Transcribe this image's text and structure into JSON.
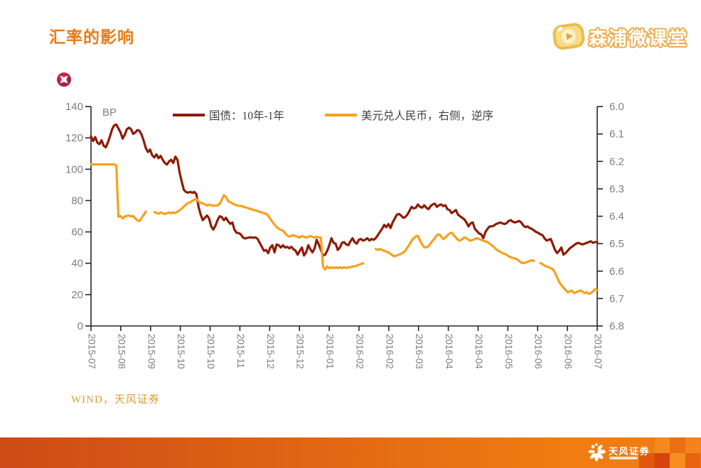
{
  "slide": {
    "background": "#FFFFFF"
  },
  "header": {
    "title": "汇率的影响",
    "title_color": "#E97B17",
    "brand": "森浦微课堂",
    "brand_text_color": "#FFFFFF",
    "brand_outline_color": "#EBAC4E"
  },
  "footer": {
    "source": "WIND，天风证券",
    "source_color": "#DA9C36"
  },
  "bottom_bar": {
    "brand_name": "天风证券",
    "gradient_left": "#CE4A16",
    "gradient_right": "#F07C12",
    "mosaic": [
      {
        "row": 0,
        "col": 1,
        "color": "#F5891D"
      },
      {
        "row": 0,
        "col": 2,
        "color": "#EC6E12"
      },
      {
        "row": 0,
        "col": 3,
        "color": "#F3831C"
      },
      {
        "row": 1,
        "col": 0,
        "color": "#E05710"
      },
      {
        "row": 1,
        "col": 1,
        "color": "#D8430E"
      },
      {
        "row": 1,
        "col": 2,
        "color": "#F68E1E"
      },
      {
        "row": 1,
        "col": 3,
        "color": "#E96410"
      }
    ]
  },
  "chart_data": {
    "type": "line",
    "title": "",
    "legend_position": "top",
    "grid": false,
    "x_axis": {
      "start_month": "2015-07",
      "end_month": "2016-07",
      "tick_labels": [
        "2015-07",
        "2015-08",
        "2015-09",
        "2015-10",
        "2015-10",
        "2015-11",
        "2015-12",
        "2015-12",
        "2016-01",
        "2016-02",
        "2016-02",
        "2016-03",
        "2016-04",
        "2016-04",
        "2016-05",
        "2016-06",
        "2016-06",
        "2016-07"
      ]
    },
    "left_axis": {
      "label": "BP",
      "min": 0,
      "max": 140,
      "ticks": [
        0,
        20,
        40,
        60,
        80,
        100,
        120,
        140
      ]
    },
    "right_axis": {
      "min": 6.0,
      "max": 6.8,
      "ticks": [
        6.0,
        6.1,
        6.2,
        6.3,
        6.4,
        6.5,
        6.6,
        6.7,
        6.8
      ],
      "inverted": true
    },
    "series": [
      {
        "name": "国债：10年-1年",
        "axis": "left",
        "unit": "BP",
        "color": "#8E1B04",
        "x_start_months": 0,
        "x_step_months": 0.05,
        "values": [
          121,
          118,
          120.5,
          117,
          116,
          118.5,
          115,
          114,
          117,
          121,
          125.5,
          128,
          128.5,
          126,
          123.5,
          119.5,
          122,
          125.5,
          126.5,
          125.5,
          122.5,
          123.5,
          125,
          124.5,
          122,
          118,
          113.5,
          111,
          112.5,
          109,
          107.5,
          109.5,
          107,
          108.5,
          106,
          104,
          103,
          105,
          106,
          104,
          108,
          106,
          98,
          92,
          87,
          85.5,
          85,
          85.5,
          85,
          85.5,
          84,
          76,
          71,
          67.5,
          69,
          70.5,
          68.5,
          63.5,
          61.5,
          64,
          67.5,
          70,
          69.5,
          67.5,
          69,
          66.8,
          65.2,
          66,
          61.5,
          59.5,
          59.2,
          58.5,
          56.5,
          55.8,
          56.2,
          56.5,
          56.5,
          56.3,
          56.5,
          55.5,
          53,
          50.5,
          48,
          48.5,
          46.5,
          50,
          51.5,
          47,
          52,
          51.5,
          50,
          51.5,
          50,
          50.5,
          49.5,
          50.5,
          49,
          48,
          45.5,
          48,
          50,
          45,
          47,
          51.5,
          49,
          47,
          49.5,
          55,
          52,
          48.5,
          45,
          45.5,
          48,
          51.5,
          56,
          53,
          52.5,
          48.5,
          50,
          53,
          53.5,
          52,
          51.5,
          54,
          56,
          53.5,
          52.5,
          55,
          55.5,
          54.5,
          55,
          56,
          54.5,
          55.5,
          55,
          56,
          58,
          60,
          62,
          64.5,
          63,
          65,
          62.5,
          66,
          68.5,
          71,
          71.5,
          70.5,
          69,
          69.5,
          71,
          73.5,
          76,
          75,
          75.5,
          77.5,
          76,
          75.5,
          77,
          75.5,
          74.5,
          76.5,
          77.5,
          78,
          76,
          77,
          77.5,
          76.5,
          77,
          74.5,
          74,
          72,
          73,
          74,
          71,
          70,
          69,
          68,
          66,
          63.5,
          65.5,
          66,
          62,
          60.5,
          59,
          58.5,
          56,
          60,
          62,
          63.5,
          63.5,
          64,
          65,
          65.5,
          66,
          65.5,
          65,
          65.5,
          67,
          67.5,
          66.5,
          66,
          66.5,
          67,
          66,
          64,
          63,
          63.5,
          62.5,
          62,
          61,
          60,
          59.5,
          58.5,
          58,
          56,
          54.5,
          55,
          55.5,
          52,
          48.5,
          46.5,
          48,
          50,
          45.5,
          46.5,
          48,
          49.5,
          50.5,
          51.5,
          52.5,
          53,
          52.5,
          52,
          52.5,
          53,
          53.5,
          54,
          53,
          53.5,
          53.5
        ]
      },
      {
        "name": "美元兑人民币，右侧，逆序",
        "axis": "right",
        "color": "#F6A11E",
        "x_start_months": 0,
        "x_step_months": 0.05,
        "values": [
          6.211,
          6.211,
          6.211,
          6.211,
          6.211,
          6.211,
          6.211,
          6.211,
          6.211,
          6.211,
          6.211,
          6.211,
          6.215,
          6.402,
          6.399,
          6.408,
          6.401,
          6.399,
          6.397,
          6.401,
          6.399,
          6.408,
          6.415,
          6.418,
          6.405,
          6.395,
          6.383,
          null,
          null,
          null,
          6.385,
          6.388,
          6.391,
          6.386,
          6.389,
          6.392,
          6.389,
          6.386,
          6.389,
          6.386,
          6.388,
          6.383,
          6.379,
          6.372,
          6.365,
          6.357,
          6.352,
          6.349,
          6.344,
          6.34,
          6.336,
          6.347,
          6.351,
          6.353,
          6.357,
          6.361,
          6.358,
          6.36,
          6.362,
          6.361,
          6.36,
          6.355,
          6.34,
          6.324,
          6.33,
          6.345,
          6.349,
          6.353,
          6.357,
          6.36,
          6.362,
          6.362,
          6.365,
          6.367,
          6.369,
          6.372,
          6.374,
          6.377,
          6.379,
          6.381,
          6.384,
          6.386,
          6.389,
          6.391,
          6.398,
          6.41,
          6.42,
          6.43,
          6.44,
          6.445,
          6.45,
          6.452,
          6.462,
          6.47,
          6.474,
          6.472,
          6.469,
          6.472,
          6.475,
          6.478,
          6.472,
          6.475,
          6.478,
          6.475,
          6.472,
          6.475,
          6.478,
          6.475,
          6.477,
          6.478,
          6.583,
          6.594,
          6.583,
          6.589,
          6.586,
          6.589,
          6.586,
          6.589,
          6.586,
          6.589,
          6.586,
          6.589,
          6.586,
          6.586,
          6.583,
          6.583,
          6.58,
          6.577,
          6.574,
          6.572,
          null,
          null,
          null,
          null,
          null,
          6.519,
          6.523,
          6.519,
          6.523,
          6.526,
          6.529,
          6.532,
          6.537,
          6.543,
          6.546,
          6.543,
          6.54,
          6.537,
          6.532,
          6.526,
          6.514,
          6.503,
          6.489,
          6.48,
          6.474,
          6.472,
          6.489,
          6.503,
          6.512,
          6.514,
          6.509,
          6.5,
          6.489,
          6.48,
          6.469,
          6.466,
          6.474,
          6.483,
          6.478,
          6.469,
          6.463,
          6.46,
          6.469,
          6.478,
          6.486,
          6.489,
          6.483,
          6.477,
          6.48,
          6.486,
          6.489,
          6.486,
          6.483,
          6.48,
          6.483,
          6.486,
          6.489,
          6.492,
          6.494,
          6.5,
          6.506,
          6.512,
          6.52,
          6.526,
          6.529,
          6.534,
          6.537,
          6.54,
          6.546,
          6.549,
          6.552,
          6.554,
          6.557,
          6.563,
          6.569,
          6.571,
          6.569,
          6.566,
          6.563,
          6.56,
          6.563,
          null,
          null,
          6.571,
          6.574,
          6.58,
          6.583,
          6.586,
          6.589,
          6.594,
          6.606,
          6.623,
          6.64,
          6.651,
          6.66,
          6.669,
          6.677,
          6.674,
          6.671,
          6.68,
          6.677,
          6.674,
          6.671,
          6.674,
          6.68,
          6.677,
          6.683,
          6.68,
          6.674,
          6.666,
          6.669
        ]
      }
    ]
  }
}
